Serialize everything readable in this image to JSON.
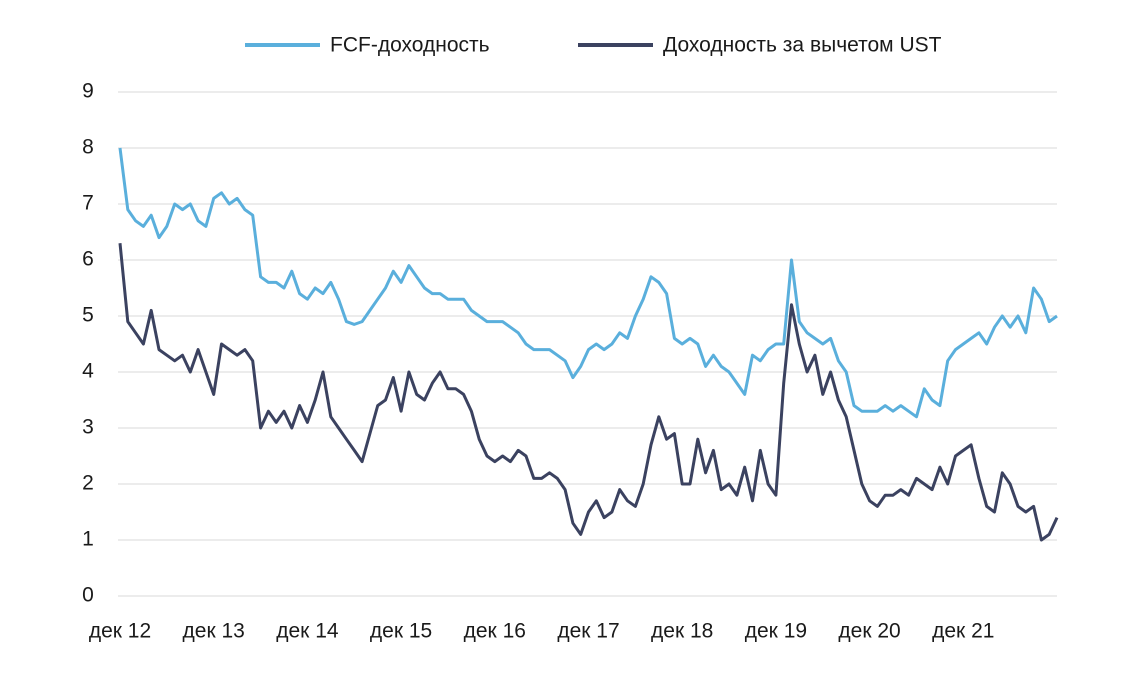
{
  "chart_data": {
    "type": "line",
    "categories": [
      "дек 12",
      null,
      null,
      null,
      null,
      null,
      null,
      null,
      null,
      null,
      null,
      null,
      "дек 13",
      null,
      null,
      null,
      null,
      null,
      null,
      null,
      null,
      null,
      null,
      null,
      "дек 14",
      null,
      null,
      null,
      null,
      null,
      null,
      null,
      null,
      null,
      null,
      null,
      "дек 15",
      null,
      null,
      null,
      null,
      null,
      null,
      null,
      null,
      null,
      null,
      null,
      "дек 16",
      null,
      null,
      null,
      null,
      null,
      null,
      null,
      null,
      null,
      null,
      null,
      "дек 17",
      null,
      null,
      null,
      null,
      null,
      null,
      null,
      null,
      null,
      null,
      null,
      "дек 18",
      null,
      null,
      null,
      null,
      null,
      null,
      null,
      null,
      null,
      null,
      null,
      "дек 19",
      null,
      null,
      null,
      null,
      null,
      null,
      null,
      null,
      null,
      null,
      null,
      "дек 20",
      null,
      null,
      null,
      null,
      null,
      null,
      null,
      null,
      null,
      null,
      null,
      "дек 21",
      null,
      null,
      null,
      null,
      null,
      null,
      null,
      null,
      null,
      null,
      null,
      null
    ],
    "series": [
      {
        "name": "FCF-доходность",
        "color": "#5aafdc",
        "values": [
          8.0,
          6.9,
          6.7,
          6.6,
          6.8,
          6.4,
          6.6,
          7.0,
          6.9,
          7.0,
          6.7,
          6.6,
          7.1,
          7.2,
          7.0,
          7.1,
          6.9,
          6.8,
          5.7,
          5.6,
          5.6,
          5.5,
          5.8,
          5.4,
          5.3,
          5.5,
          5.4,
          5.6,
          5.3,
          4.9,
          4.85,
          4.9,
          5.1,
          5.3,
          5.5,
          5.8,
          5.6,
          5.9,
          5.7,
          5.5,
          5.4,
          5.4,
          5.3,
          5.3,
          5.3,
          5.1,
          5.0,
          4.9,
          4.9,
          4.9,
          4.8,
          4.7,
          4.5,
          4.4,
          4.4,
          4.4,
          4.3,
          4.2,
          3.9,
          4.1,
          4.4,
          4.5,
          4.4,
          4.5,
          4.7,
          4.6,
          5.0,
          5.3,
          5.7,
          5.6,
          5.4,
          4.6,
          4.5,
          4.6,
          4.5,
          4.1,
          4.3,
          4.1,
          4.0,
          3.8,
          3.6,
          4.3,
          4.2,
          4.4,
          4.5,
          4.5,
          6.0,
          4.9,
          4.7,
          4.6,
          4.5,
          4.6,
          4.2,
          4.0,
          3.4,
          3.3,
          3.3,
          3.3,
          3.4,
          3.3,
          3.4,
          3.3,
          3.2,
          3.7,
          3.5,
          3.4,
          4.2,
          4.4,
          4.5,
          4.6,
          4.7,
          4.5,
          4.8,
          5.0,
          4.8,
          5.0,
          4.7,
          5.5,
          5.3,
          4.9,
          5.0
        ]
      },
      {
        "name": "Доходность за вычетом UST",
        "color": "#3b4260",
        "values": [
          6.3,
          4.9,
          4.7,
          4.5,
          5.1,
          4.4,
          4.3,
          4.2,
          4.3,
          4.0,
          4.4,
          4.0,
          3.6,
          4.5,
          4.4,
          4.3,
          4.4,
          4.2,
          3.0,
          3.3,
          3.1,
          3.3,
          3.0,
          3.4,
          3.1,
          3.5,
          4.0,
          3.2,
          3.0,
          2.8,
          2.6,
          2.4,
          2.9,
          3.4,
          3.5,
          3.9,
          3.3,
          4.0,
          3.6,
          3.5,
          3.8,
          4.0,
          3.7,
          3.7,
          3.6,
          3.3,
          2.8,
          2.5,
          2.4,
          2.5,
          2.4,
          2.6,
          2.5,
          2.1,
          2.1,
          2.2,
          2.1,
          1.9,
          1.3,
          1.1,
          1.5,
          1.7,
          1.4,
          1.5,
          1.9,
          1.7,
          1.6,
          2.0,
          2.7,
          3.2,
          2.8,
          2.9,
          2.0,
          2.0,
          2.8,
          2.2,
          2.6,
          1.9,
          2.0,
          1.8,
          2.3,
          1.7,
          2.6,
          2.0,
          1.8,
          3.8,
          5.2,
          4.5,
          4.0,
          4.3,
          3.6,
          4.0,
          3.5,
          3.2,
          2.6,
          2.0,
          1.7,
          1.6,
          1.8,
          1.8,
          1.9,
          1.8,
          2.1,
          2.0,
          1.9,
          2.3,
          2.0,
          2.5,
          2.6,
          2.7,
          2.1,
          1.6,
          1.5,
          2.2,
          2.0,
          1.6,
          1.5,
          1.6,
          1.0,
          1.1,
          1.4
        ]
      }
    ],
    "ylim": [
      0,
      9
    ],
    "yticks": [
      0,
      1,
      2,
      3,
      4,
      5,
      6,
      7,
      8,
      9
    ],
    "grid": true
  }
}
